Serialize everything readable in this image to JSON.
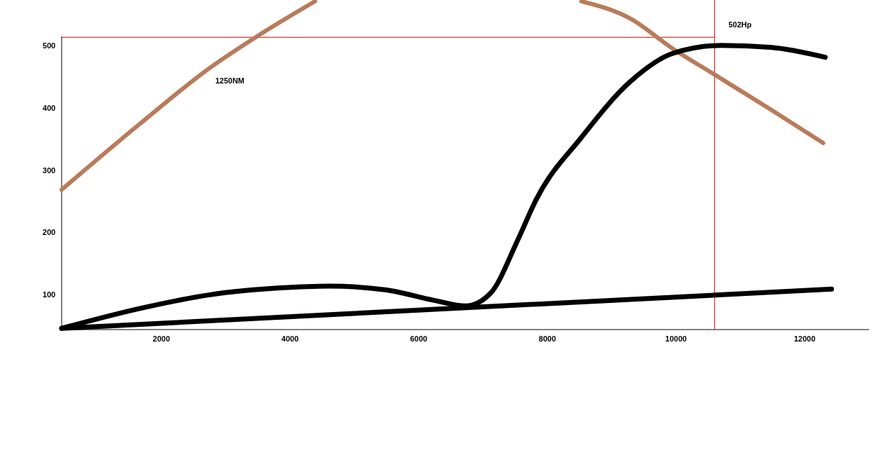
{
  "chart_data": {
    "type": "line",
    "xlim": [
      450,
      13000
    ],
    "ylim": [
      45,
      575
    ],
    "xticks": [
      2000,
      4000,
      6000,
      8000,
      10000,
      12000
    ],
    "yticks": [
      100,
      200,
      300,
      400,
      500
    ],
    "grid": false,
    "line_style": "solid",
    "series": [
      {
        "color": "#b97b5a",
        "x": [
          450,
          1667,
          2756,
          3464,
          4390,
          6500,
          8530,
          9292,
          9946,
          10600,
          11470,
          12288
        ],
        "values": [
          270,
          376,
          466,
          515,
          573,
          null,
          573,
          545,
          497,
          455,
          399,
          345
        ]
      },
      {
        "color": "#000000",
        "x": [
          450,
          1667,
          2756,
          3845,
          4608,
          5479,
          6242,
          6732,
          7113,
          7549,
          7821,
          8529,
          9292,
          9946,
          10708,
          11470,
          12320
        ],
        "values": [
          47,
          79,
          101,
          112,
          115,
          109,
          92,
          83,
          103,
          191,
          253,
          354,
          444,
          489,
          502,
          499,
          483
        ]
      },
      {
        "color": "#000000",
        "x": [
          450,
          12418
        ],
        "values": [
          47,
          110
        ]
      }
    ],
    "ref_lines": [
      {
        "axis": "y",
        "value": 515,
        "label": "502Hp",
        "color": "#cc0000"
      },
      {
        "axis": "x",
        "value": 10600,
        "color": "#cc0000"
      }
    ],
    "annotations": [
      "1250NM"
    ]
  }
}
